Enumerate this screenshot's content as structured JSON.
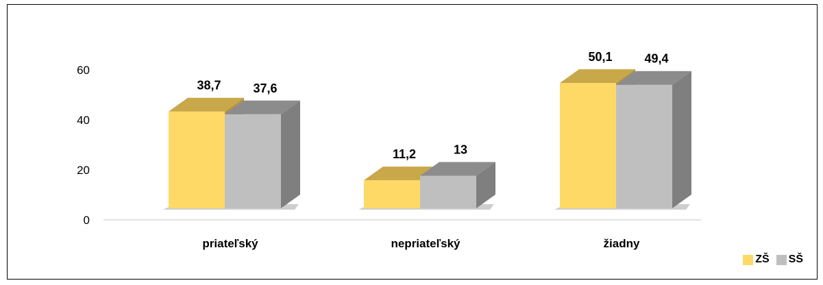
{
  "chart_data": {
    "type": "bar",
    "categories": [
      "priateľský",
      "nepriateľský",
      "žiadny"
    ],
    "series": [
      {
        "name": "ZŠ",
        "values": [
          38.7,
          11.2,
          50.1
        ],
        "labels": [
          "38,7",
          "11,2",
          "50,1"
        ]
      },
      {
        "name": "SŠ",
        "values": [
          37.6,
          13,
          49.4
        ],
        "labels": [
          "37,6",
          "13",
          "49,4"
        ]
      }
    ],
    "yticks": [
      "0",
      "20",
      "40",
      "60"
    ],
    "ylim": [
      0,
      60
    ],
    "grid": false,
    "legend_position": "bottom-right",
    "style": "3d-clustered-column",
    "colors": {
      "ZŠ": {
        "front": "#FFD966",
        "top": "#C9A84A",
        "side": "#B39445"
      },
      "SŠ": {
        "front": "#BFBFBF",
        "top": "#8C8C8C",
        "side": "#7F7F7F"
      },
      "axis": "#D9D9D9",
      "shadow": "#A6A6A6"
    }
  }
}
